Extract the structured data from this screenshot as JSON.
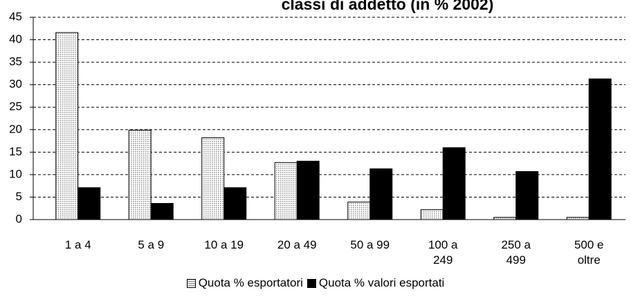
{
  "chart_data": {
    "type": "bar",
    "title": "classi di addetto (in % 2002)",
    "categories": [
      "1 a 4",
      "5 a 9",
      "10 a 19",
      "20 a 49",
      "50 a 99",
      "100 a 249",
      "250 a 499",
      "500 e oltre"
    ],
    "series": [
      {
        "name": "Quota % esportatori",
        "color": "#d9d9d9",
        "values": [
          41.6,
          19.9,
          18.2,
          12.7,
          3.9,
          2.2,
          0.5,
          0.5
        ]
      },
      {
        "name": "Quota % valori esportati",
        "color": "#000000",
        "values": [
          7.1,
          3.6,
          7.1,
          13.0,
          11.3,
          16.0,
          10.7,
          31.3
        ]
      }
    ],
    "ylim": [
      0,
      45
    ],
    "yticks": [
      0,
      5,
      10,
      15,
      20,
      25,
      30,
      35,
      40,
      45
    ],
    "grid": true
  }
}
